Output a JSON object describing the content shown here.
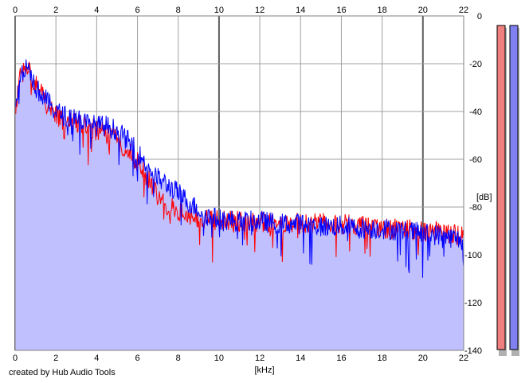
{
  "chart_data": {
    "type": "area",
    "title": "",
    "xlabel": "[kHz]",
    "ylabel": "[dB]",
    "xlim": [
      0,
      22
    ],
    "ylim": [
      -140,
      0
    ],
    "x_ticks": [
      0,
      2,
      4,
      6,
      8,
      10,
      12,
      14,
      16,
      18,
      20,
      22
    ],
    "y_ticks": [
      0,
      -20,
      -40,
      -60,
      -80,
      -100,
      -120,
      -140
    ],
    "grid": true,
    "legend": "none",
    "x": [
      0,
      0.25,
      0.5,
      0.75,
      1,
      1.5,
      2,
      2.5,
      3,
      3.5,
      4,
      4.5,
      5,
      5.5,
      6,
      6.5,
      7,
      7.5,
      8,
      8.5,
      9,
      9.5,
      10,
      11,
      12,
      13,
      14,
      15,
      16,
      17,
      18,
      19,
      20,
      21,
      22
    ],
    "series": [
      {
        "color": "#ff0000",
        "values": [
          -40,
          -26,
          -21,
          -24,
          -28,
          -36,
          -42,
          -45,
          -44,
          -47,
          -48,
          -50,
          -52,
          -56,
          -61,
          -68,
          -75,
          -80,
          -82,
          -84,
          -85,
          -85,
          -86,
          -86,
          -86,
          -87,
          -87,
          -87,
          -87,
          -88,
          -89,
          -89,
          -90,
          -91,
          -92
        ]
      },
      {
        "color": "#0000ff",
        "values": [
          -40,
          -25,
          -22,
          -25,
          -30,
          -35,
          -40,
          -42,
          -42,
          -45,
          -46,
          -46,
          -48,
          -52,
          -57,
          -63,
          -68,
          -71,
          -74,
          -78,
          -81,
          -84,
          -85,
          -86,
          -86,
          -87,
          -87,
          -88,
          -88,
          -89,
          -89,
          -90,
          -91,
          -92,
          -94
        ]
      }
    ],
    "area_fill": "#c0c0ff",
    "level_meters": [
      {
        "color": "#f08080"
      },
      {
        "color": "#8080f0"
      }
    ]
  },
  "credit": "created by Hub Audio Tools"
}
